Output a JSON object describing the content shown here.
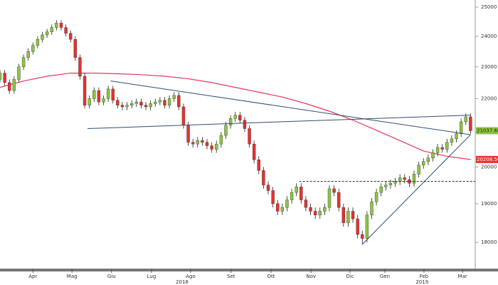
{
  "chart_data": {
    "type": "candlestick",
    "log_scale": true,
    "xlim": [
      0,
      101
    ],
    "ylim": [
      17370,
      25250
    ],
    "yticks": [
      18000,
      19000,
      20000,
      21000,
      22000,
      23000,
      24000,
      25000
    ],
    "xticks": [
      {
        "value": 7,
        "label": "Apr"
      },
      {
        "value": 15.3,
        "label": "Mag"
      },
      {
        "value": 23.7,
        "label": "Giu"
      },
      {
        "value": 32.2,
        "label": "Lug"
      },
      {
        "value": 40.5,
        "label": "Ago"
      },
      {
        "value": 49.1,
        "label": "Set"
      },
      {
        "value": 57.6,
        "label": "Ott"
      },
      {
        "value": 66.1,
        "label": "Nov"
      },
      {
        "value": 74.4,
        "label": "Dic"
      },
      {
        "value": 81.8,
        "label": "Gen"
      },
      {
        "value": 90.1,
        "label": "Feb"
      },
      {
        "value": 98.3,
        "label": "Mar"
      }
    ],
    "year_labels": [
      {
        "value": 38.7,
        "label": "2018"
      },
      {
        "value": 89.7,
        "label": "2019"
      }
    ],
    "up_color": "#8dc63f",
    "down_color": "#e8302e",
    "ohlc": [
      [
        22600,
        22900,
        22500,
        22800
      ],
      [
        22800,
        22900,
        22400,
        22500
      ],
      [
        22500,
        22600,
        22150,
        22250
      ],
      [
        22250,
        22700,
        22150,
        22600
      ],
      [
        22600,
        23100,
        22500,
        23000
      ],
      [
        23000,
        23400,
        22900,
        23300
      ],
      [
        23300,
        23600,
        23200,
        23500
      ],
      [
        23500,
        23800,
        23400,
        23700
      ],
      [
        23700,
        24000,
        23600,
        23900
      ],
      [
        23900,
        24150,
        23800,
        24050
      ],
      [
        24050,
        24250,
        23950,
        24150
      ],
      [
        24150,
        24400,
        24050,
        24300
      ],
      [
        24300,
        24550,
        24200,
        24450
      ],
      [
        24450,
        24550,
        24200,
        24300
      ],
      [
        24300,
        24400,
        24000,
        24100
      ],
      [
        24100,
        24200,
        23800,
        23900
      ],
      [
        23900,
        24000,
        23200,
        23300
      ],
      [
        23300,
        23400,
        22600,
        22700
      ],
      [
        22700,
        22800,
        21700,
        21800
      ],
      [
        21800,
        22100,
        21700,
        22000
      ],
      [
        22000,
        22350,
        21900,
        22250
      ],
      [
        22250,
        22350,
        21800,
        21900
      ],
      [
        21900,
        22100,
        21800,
        22000
      ],
      [
        22000,
        22400,
        21900,
        22300
      ],
      [
        22300,
        22400,
        21850,
        21950
      ],
      [
        21950,
        22050,
        21700,
        21800
      ],
      [
        21800,
        21900,
        21650,
        21750
      ],
      [
        21750,
        21900,
        21650,
        21800
      ],
      [
        21800,
        21950,
        21700,
        21850
      ],
      [
        21850,
        22000,
        21750,
        21900
      ],
      [
        21900,
        22000,
        21700,
        21800
      ],
      [
        21800,
        21900,
        21650,
        21750
      ],
      [
        21750,
        21950,
        21650,
        21850
      ],
      [
        21850,
        22000,
        21750,
        21900
      ],
      [
        21900,
        22050,
        21800,
        21950
      ],
      [
        21950,
        22050,
        21700,
        21800
      ],
      [
        21800,
        22100,
        21700,
        22000
      ],
      [
        22000,
        22200,
        21900,
        22100
      ],
      [
        22100,
        22200,
        21650,
        21750
      ],
      [
        21750,
        21850,
        21100,
        21200
      ],
      [
        21200,
        21300,
        20600,
        20700
      ],
      [
        20700,
        20800,
        20550,
        20650
      ],
      [
        20650,
        20850,
        20550,
        20750
      ],
      [
        20750,
        20850,
        20600,
        20700
      ],
      [
        20700,
        20800,
        20500,
        20600
      ],
      [
        20600,
        20700,
        20400,
        20500
      ],
      [
        20500,
        20750,
        20400,
        20650
      ],
      [
        20650,
        21000,
        20550,
        20900
      ],
      [
        20900,
        21300,
        20800,
        21200
      ],
      [
        21200,
        21500,
        21100,
        21400
      ],
      [
        21400,
        21600,
        21300,
        21500
      ],
      [
        21500,
        21600,
        21250,
        21350
      ],
      [
        21350,
        21450,
        21000,
        21100
      ],
      [
        21100,
        21200,
        20550,
        20650
      ],
      [
        20650,
        20750,
        20100,
        20200
      ],
      [
        20200,
        20300,
        19800,
        19900
      ],
      [
        19900,
        20000,
        19400,
        19500
      ],
      [
        19500,
        19600,
        19250,
        19350
      ],
      [
        19350,
        19450,
        18900,
        19000
      ],
      [
        19000,
        19100,
        18700,
        18800
      ],
      [
        18800,
        19000,
        18700,
        18900
      ],
      [
        18900,
        19200,
        18800,
        19100
      ],
      [
        19100,
        19400,
        19000,
        19300
      ],
      [
        19300,
        19550,
        19200,
        19450
      ],
      [
        19450,
        19550,
        19000,
        19100
      ],
      [
        19100,
        19200,
        18800,
        18900
      ],
      [
        18900,
        19000,
        18700,
        18800
      ],
      [
        18800,
        18900,
        18600,
        18700
      ],
      [
        18700,
        18900,
        18600,
        18800
      ],
      [
        18800,
        19000,
        18700,
        18900
      ],
      [
        18900,
        19500,
        18800,
        19400
      ],
      [
        19400,
        19500,
        19200,
        19300
      ],
      [
        19300,
        19400,
        18800,
        18900
      ],
      [
        18900,
        19000,
        18400,
        18500
      ],
      [
        18500,
        18900,
        18400,
        18800
      ],
      [
        18800,
        18900,
        18500,
        18600
      ],
      [
        18600,
        18700,
        18100,
        18200
      ],
      [
        18200,
        18300,
        17950,
        18100
      ],
      [
        18100,
        18800,
        18000,
        18700
      ],
      [
        18700,
        19150,
        18600,
        19050
      ],
      [
        19050,
        19400,
        18950,
        19300
      ],
      [
        19300,
        19550,
        19200,
        19450
      ],
      [
        19450,
        19600,
        19350,
        19500
      ],
      [
        19500,
        19650,
        19400,
        19550
      ],
      [
        19550,
        19700,
        19450,
        19600
      ],
      [
        19600,
        19800,
        19500,
        19700
      ],
      [
        19700,
        19800,
        19550,
        19650
      ],
      [
        19650,
        19750,
        19450,
        19550
      ],
      [
        19550,
        19900,
        19450,
        19800
      ],
      [
        19800,
        20150,
        19700,
        20050
      ],
      [
        20050,
        20250,
        19950,
        20150
      ],
      [
        20150,
        20350,
        20050,
        20250
      ],
      [
        20250,
        20500,
        20150,
        20400
      ],
      [
        20400,
        20650,
        20300,
        20550
      ],
      [
        20550,
        20650,
        20400,
        20500
      ],
      [
        20500,
        20800,
        20400,
        20700
      ],
      [
        20700,
        20900,
        20600,
        20800
      ],
      [
        20800,
        21050,
        20700,
        20950
      ],
      [
        20950,
        21400,
        20850,
        21300
      ],
      [
        21300,
        21550,
        21200,
        21450
      ],
      [
        21450,
        21550,
        20950,
        21037.6816
      ]
    ],
    "moving_average": {
      "color": "#e8365a",
      "x": [
        0,
        5,
        10,
        15,
        20,
        25,
        30,
        35,
        40,
        45,
        50,
        55,
        60,
        65,
        70,
        75,
        80,
        85,
        90,
        95,
        100
      ],
      "values": [
        22350,
        22550,
        22700,
        22800,
        22800,
        22780,
        22750,
        22700,
        22620,
        22500,
        22350,
        22200,
        22050,
        21850,
        21620,
        21350,
        21050,
        20750,
        20450,
        20300,
        20208.5668
      ]
    },
    "trend_lines": [
      {
        "color": "#2f4f6f",
        "dashed": false,
        "x": [
          18.6,
          100
        ],
        "values": [
          21100,
          21500
        ]
      },
      {
        "color": "#2f4f6f",
        "dashed": false,
        "x": [
          23.5,
          100
        ],
        "values": [
          22550,
          20920
        ]
      },
      {
        "color": "#2f4f6f",
        "dashed": false,
        "x": [
          77,
          100
        ],
        "values": [
          17950,
          20920
        ]
      },
      {
        "color": "#222222",
        "dashed": true,
        "x": [
          63.6,
          101
        ],
        "values": [
          19600,
          19600
        ]
      }
    ],
    "last_price": {
      "value": 21037.6816,
      "color": "#8dc63f"
    },
    "ma_last": {
      "value": 20208.5668,
      "color": "#e8302e"
    }
  }
}
